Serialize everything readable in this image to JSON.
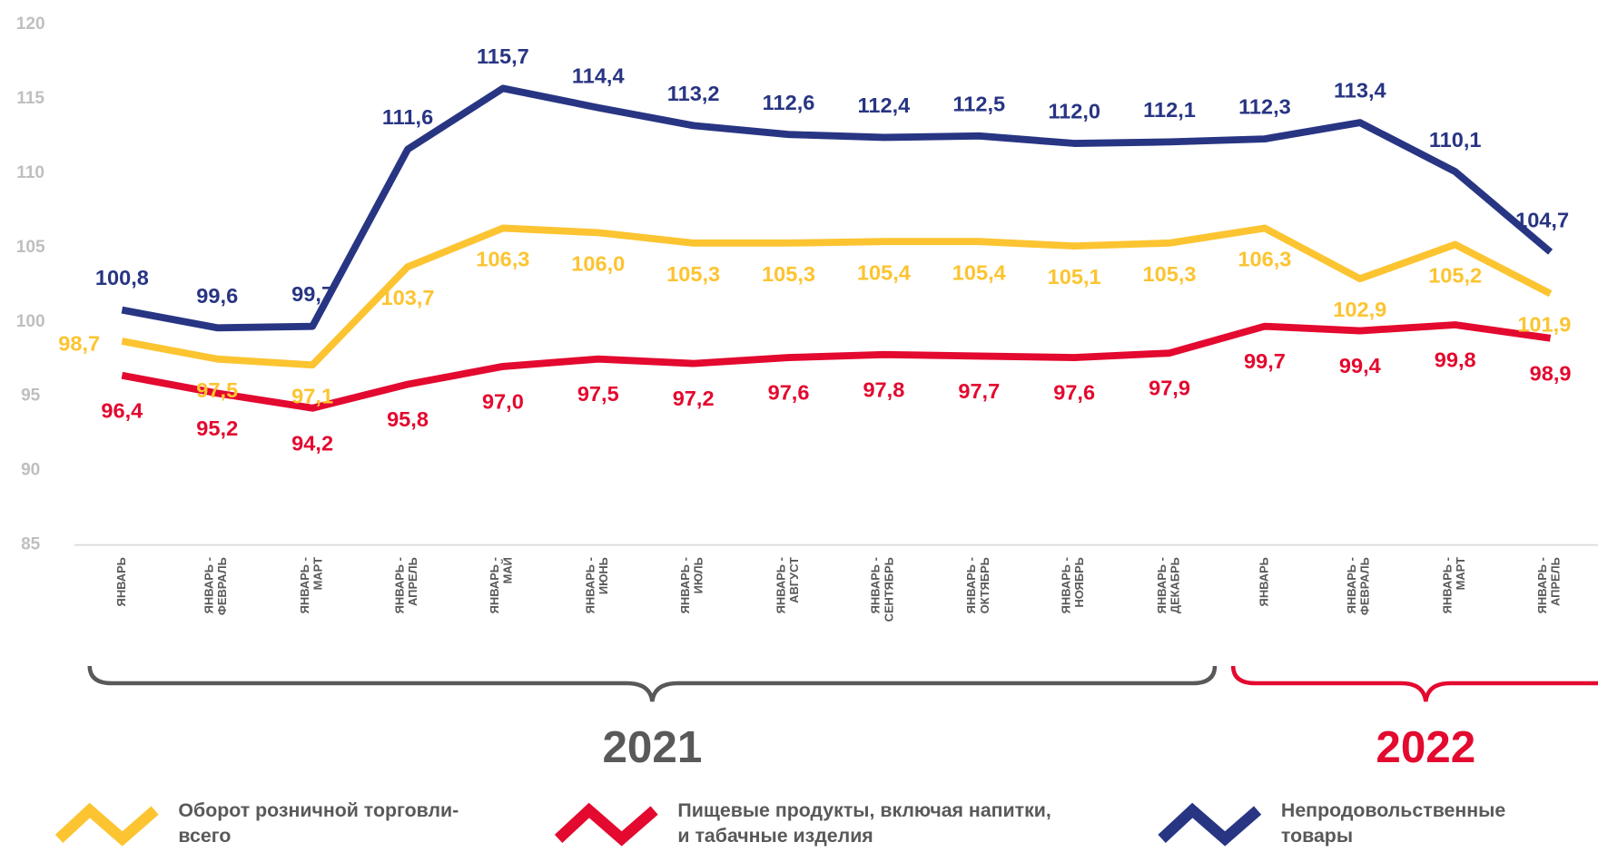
{
  "chart_data": {
    "type": "line",
    "categories": [
      "ЯНВАРЬ",
      "ЯНВАРЬ - ФЕВРАЛЬ",
      "ЯНВАРЬ - МАРТ",
      "ЯНВАРЬ - АПРЕЛЬ",
      "ЯНВАРЬ - МАЙ",
      "ЯНВАРЬ - ИЮНЬ",
      "ЯНВАРЬ - ИЮЛЬ",
      "ЯНВАРЬ - АВГУСТ",
      "ЯНВАРЬ - СЕНТЯБРЬ",
      "ЯНВАРЬ - ОКТЯБРЬ",
      "ЯНВАРЬ - НОЯБРЬ",
      "ЯНВАРЬ - ДЕКАБРЬ",
      "ЯНВАРЬ",
      "ЯНВАРЬ - ФЕВРАЛЬ",
      "ЯНВАРЬ - МАРТ",
      "ЯНВАРЬ - АПРЕЛЬ"
    ],
    "series": [
      {
        "name": "Оборот розничной торговли-\nвсего",
        "color": "#fcc431",
        "values": [
          98.7,
          97.5,
          97.1,
          103.7,
          106.3,
          106.0,
          105.3,
          105.3,
          105.4,
          105.4,
          105.1,
          105.3,
          106.3,
          102.9,
          105.2,
          101.9
        ],
        "value_labels": [
          "98,7",
          "97,5",
          "97,1",
          "103,7",
          "106,3",
          "106,0",
          "105,3",
          "105,3",
          "105,4",
          "105,4",
          "105,1",
          "105,3",
          "106,3",
          "102,9",
          "105,2",
          "101,9"
        ]
      },
      {
        "name": "Пищевые продукты, включая напитки,\nи табачные изделия",
        "color": "#e3092f",
        "values": [
          96.4,
          95.2,
          94.2,
          95.8,
          97.0,
          97.5,
          97.2,
          97.6,
          97.8,
          97.7,
          97.6,
          97.9,
          99.7,
          99.4,
          99.8,
          98.9
        ],
        "value_labels": [
          "96,4",
          "95,2",
          "94,2",
          "95,8",
          "97,0",
          "97,5",
          "97,2",
          "97,6",
          "97,8",
          "97,7",
          "97,6",
          "97,9",
          "99,7",
          "99,4",
          "99,8",
          "98,9"
        ]
      },
      {
        "name": "Непродовольственные\nтовары",
        "color": "#283583",
        "values": [
          100.8,
          99.6,
          99.7,
          111.6,
          115.7,
          114.4,
          113.2,
          112.6,
          112.4,
          112.5,
          112.0,
          112.1,
          112.3,
          113.4,
          110.1,
          104.7
        ],
        "value_labels": [
          "100,8",
          "99,6",
          "99,7",
          "111,6",
          "115,7",
          "114,4",
          "113,2",
          "112,6",
          "112,4",
          "112,5",
          "112,0",
          "112,1",
          "112,3",
          "113,4",
          "110,1",
          "104,7"
        ]
      }
    ],
    "annotations": [
      "2021",
      "2022"
    ],
    "ylim": [
      85,
      120
    ],
    "yticks": [
      85,
      90,
      95,
      100,
      105,
      110,
      115,
      120
    ],
    "grid": false
  }
}
